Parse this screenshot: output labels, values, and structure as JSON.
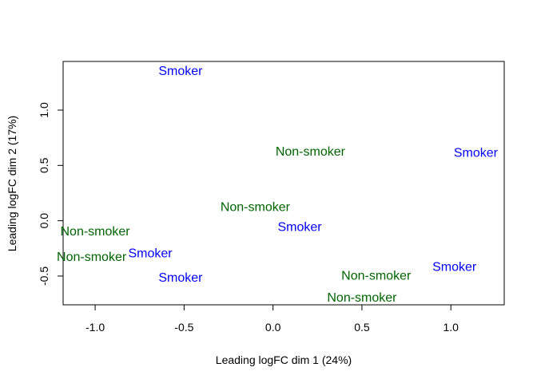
{
  "chart_data": {
    "type": "scatter",
    "title": "",
    "xlabel": "Leading logFC dim 1 (24%)",
    "ylabel": "Leading logFC dim 2 (17%)",
    "xlim": [
      -1.18,
      1.3
    ],
    "ylim": [
      -0.76,
      1.44
    ],
    "xticks": [
      -1.0,
      -0.5,
      0.0,
      0.5,
      1.0
    ],
    "xtick_labels": [
      "-1.0",
      "-0.5",
      "0.0",
      "0.5",
      "1.0"
    ],
    "yticks": [
      -0.5,
      0.0,
      0.5,
      1.0
    ],
    "ytick_labels": [
      "-0.5",
      "0.0",
      "0.5",
      "1.0"
    ],
    "grid": false,
    "colors": {
      "Smoker": "#0000ff",
      "Non-smoker": "#006400"
    },
    "points": [
      {
        "label": "Smoker",
        "x": -0.52,
        "y": 1.35
      },
      {
        "label": "Non-smoker",
        "x": 0.21,
        "y": 0.62
      },
      {
        "label": "Smoker",
        "x": 1.14,
        "y": 0.61
      },
      {
        "label": "Non-smoker",
        "x": -0.1,
        "y": 0.12
      },
      {
        "label": "Smoker",
        "x": 0.15,
        "y": -0.06
      },
      {
        "label": "Non-smoker",
        "x": -1.0,
        "y": -0.1
      },
      {
        "label": "Smoker",
        "x": -0.69,
        "y": -0.3
      },
      {
        "label": "Non-smoker",
        "x": -1.02,
        "y": -0.33
      },
      {
        "label": "Smoker",
        "x": -0.52,
        "y": -0.52
      },
      {
        "label": "Smoker",
        "x": 1.02,
        "y": -0.42
      },
      {
        "label": "Non-smoker",
        "x": 0.58,
        "y": -0.5
      },
      {
        "label": "Non-smoker",
        "x": 0.5,
        "y": -0.7
      }
    ]
  }
}
